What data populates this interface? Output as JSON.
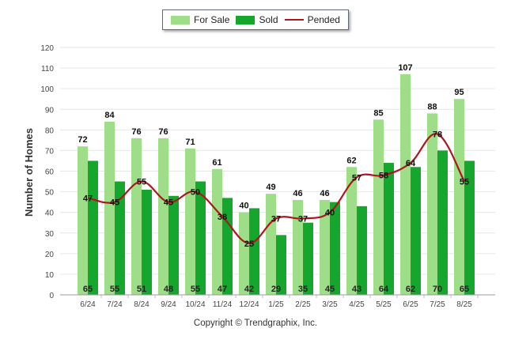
{
  "chart_data": {
    "type": "bar",
    "ylabel": "Number of Homes",
    "xlabel": "",
    "ylim": [
      0,
      120
    ],
    "yticks": [
      0,
      10,
      20,
      30,
      40,
      50,
      60,
      70,
      80,
      90,
      100,
      110,
      120
    ],
    "categories": [
      "6/24",
      "7/24",
      "8/24",
      "9/24",
      "10/24",
      "11/24",
      "12/24",
      "1/25",
      "2/25",
      "3/25",
      "4/25",
      "5/25",
      "6/25",
      "7/25",
      "8/25"
    ],
    "series": [
      {
        "name": "For Sale",
        "type": "bar",
        "color": "#9ede88",
        "values": [
          72,
          84,
          76,
          76,
          71,
          61,
          40,
          49,
          46,
          46,
          62,
          85,
          107,
          88,
          95
        ]
      },
      {
        "name": "Sold",
        "type": "bar",
        "color": "#14a62d",
        "values": [
          65,
          55,
          51,
          48,
          55,
          47,
          42,
          29,
          35,
          45,
          43,
          64,
          62,
          70,
          65
        ]
      },
      {
        "name": "Pended",
        "type": "line",
        "color": "#b0141c",
        "values": [
          47,
          45,
          55,
          45,
          50,
          38,
          25,
          37,
          37,
          40,
          57,
          58,
          64,
          78,
          55
        ]
      }
    ],
    "legend_position": "top-center",
    "grid": true
  },
  "footer": {
    "copyright": "Copyright © Trendgraphix, Inc."
  }
}
